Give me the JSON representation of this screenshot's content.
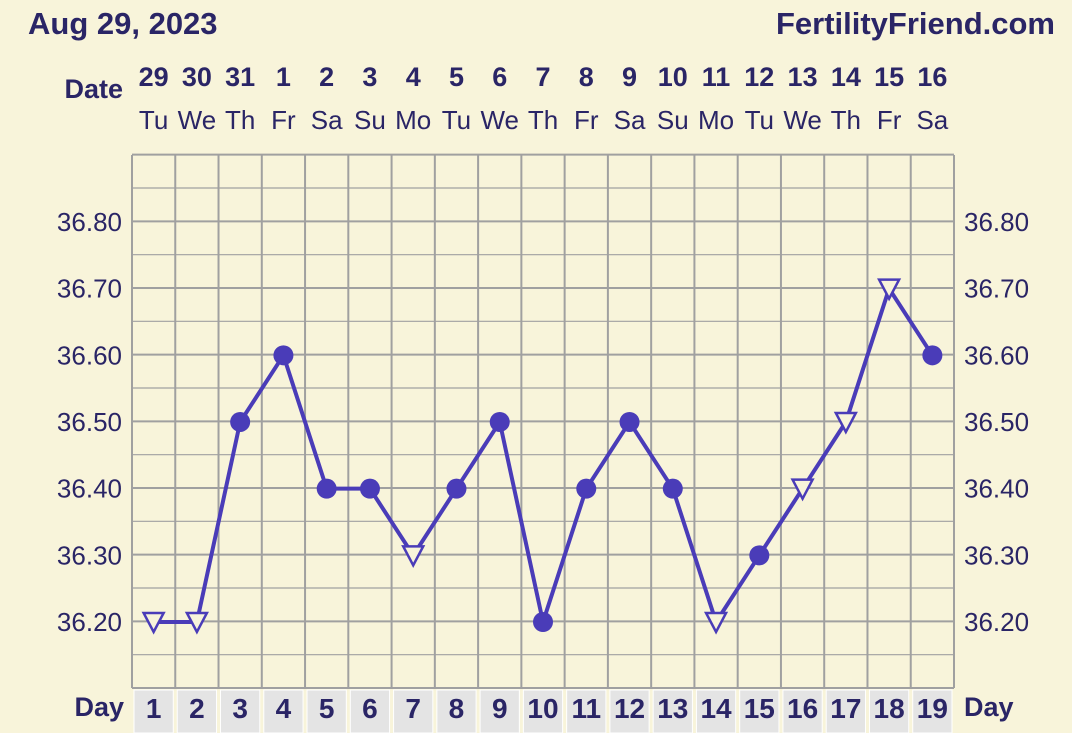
{
  "header": {
    "chart_date": "Aug 29, 2023",
    "brand": "FertilityFriend.com",
    "date_label": "Date",
    "day_label_left": "Day",
    "day_label_right": "Day"
  },
  "colors": {
    "background": "#f8f4da",
    "grid": "#a0a0a0",
    "line": "#4a3cb8",
    "text": "#2a2566",
    "day_cell": "#e4e4e4"
  },
  "chart_data": {
    "type": "line",
    "title": "",
    "xlabel": "Day",
    "ylabel": "",
    "grid": true,
    "ylim": [
      36.1,
      36.9
    ],
    "y_ticks": [
      "36.20",
      "36.30",
      "36.40",
      "36.50",
      "36.60",
      "36.70",
      "36.80"
    ],
    "dates": [
      "29",
      "30",
      "31",
      "1",
      "2",
      "3",
      "4",
      "5",
      "6",
      "7",
      "8",
      "9",
      "10",
      "11",
      "12",
      "13",
      "14",
      "15",
      "16"
    ],
    "weekdays": [
      "Tu",
      "We",
      "Th",
      "Fr",
      "Sa",
      "Su",
      "Mo",
      "Tu",
      "We",
      "Th",
      "Fr",
      "Sa",
      "Su",
      "Mo",
      "Tu",
      "We",
      "Th",
      "Fr",
      "Sa"
    ],
    "days": [
      "1",
      "2",
      "3",
      "4",
      "5",
      "6",
      "7",
      "8",
      "9",
      "10",
      "11",
      "12",
      "13",
      "14",
      "15",
      "16",
      "17",
      "18",
      "19"
    ],
    "series": [
      {
        "values": [
          36.2,
          36.2,
          36.5,
          36.6,
          36.4,
          36.4,
          36.3,
          36.4,
          36.5,
          36.2,
          36.4,
          36.5,
          36.4,
          36.2,
          36.3,
          36.4,
          36.5,
          36.7,
          36.6
        ],
        "markers": [
          "open-triangle",
          "open-triangle",
          "circle",
          "circle",
          "circle",
          "circle",
          "open-triangle",
          "circle",
          "circle",
          "circle",
          "circle",
          "circle",
          "circle",
          "open-triangle",
          "circle",
          "open-triangle",
          "open-triangle",
          "open-triangle",
          "circle"
        ]
      }
    ]
  }
}
